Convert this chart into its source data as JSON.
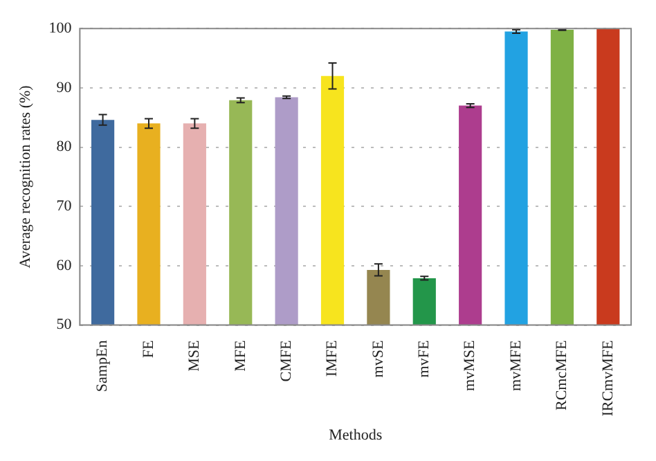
{
  "chart_data": {
    "type": "bar",
    "xlabel": "Methods",
    "ylabel": "Average recognition rates (%)",
    "categories": [
      "SampEn",
      "FE",
      "MSE",
      "MFE",
      "CMFE",
      "IMFE",
      "mvSE",
      "mvFE",
      "mvMSE",
      "mvMFE",
      "RCmcMFE",
      "IRCmvMFE"
    ],
    "values": [
      84.6,
      84.0,
      84.0,
      87.9,
      88.4,
      92.0,
      59.3,
      57.9,
      87.0,
      99.5,
      99.8,
      100
    ],
    "errors": [
      0.9,
      0.8,
      0.8,
      0.4,
      0.2,
      2.2,
      1.0,
      0.3,
      0.3,
      0.3,
      0.1,
      null
    ],
    "colors": [
      "#3f6a9e",
      "#e8b020",
      "#e6b0b0",
      "#97b856",
      "#ae9cc8",
      "#f7e41e",
      "#958650",
      "#23964a",
      "#ad3d8e",
      "#22a2e2",
      "#7fb145",
      "#c93a1e"
    ],
    "ylim": [
      50,
      100
    ],
    "yticks": [
      50,
      60,
      70,
      80,
      90,
      100
    ],
    "grid": "y",
    "legend": false
  }
}
